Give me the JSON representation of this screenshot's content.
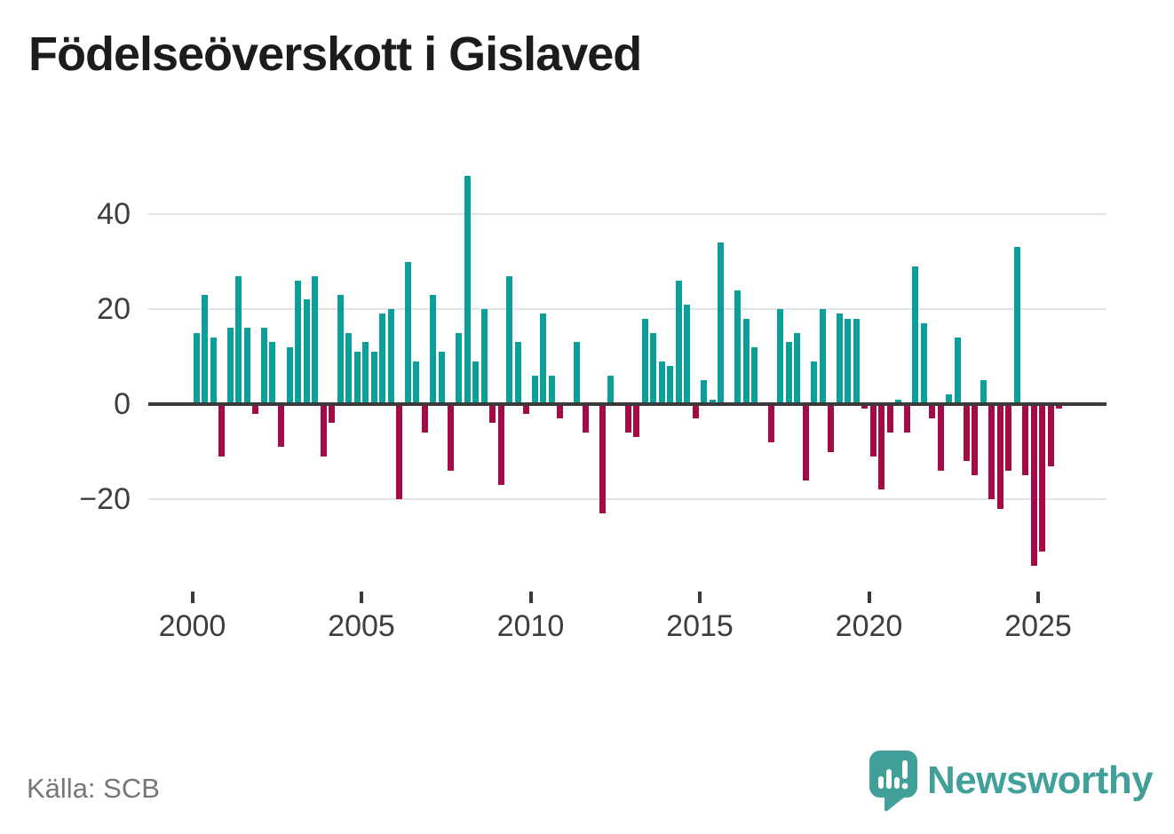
{
  "title": "Födelseöverskott i Gislaved",
  "source": "Källa: SCB",
  "brand": {
    "name": "Newsworthy"
  },
  "colors": {
    "positive": "#0aa099",
    "negative": "#a40a45",
    "axis_line": "#3a3a3a",
    "gridline": "#e3e3e3",
    "tick_text": "#3d3d3d",
    "title_text": "#1c1c1c",
    "source_text": "#767676",
    "brand_teal": "#41a099"
  },
  "chart_data": {
    "type": "bar",
    "title": "Födelseöverskott i Gislaved",
    "freq": "quarterly",
    "start_year": 2000,
    "start_quarter": 1,
    "values": [
      15,
      23,
      14,
      -11,
      16,
      27,
      16,
      -2,
      16,
      13,
      -9,
      12,
      26,
      22,
      27,
      -11,
      -4,
      23,
      15,
      11,
      13,
      11,
      19,
      20,
      -20,
      30,
      9,
      -6,
      23,
      11,
      -14,
      15,
      48,
      9,
      20,
      -4,
      -17,
      27,
      13,
      -2,
      6,
      19,
      6,
      -3,
      0,
      13,
      -6,
      0,
      -23,
      6,
      0,
      -6,
      -7,
      18,
      15,
      9,
      8,
      26,
      21,
      -3,
      5,
      1,
      34,
      0,
      24,
      18,
      12,
      0,
      -8,
      20,
      13,
      15,
      -16,
      9,
      20,
      -10,
      19,
      18,
      18,
      -1,
      -11,
      -18,
      -6,
      1,
      -6,
      29,
      17,
      -3,
      -14,
      2,
      14,
      -12,
      -15,
      5,
      -20,
      -22,
      -14,
      33,
      -15,
      -34,
      -31,
      -13,
      -1
    ],
    "yticks": [
      {
        "value": 40,
        "label": "40"
      },
      {
        "value": 20,
        "label": "20"
      },
      {
        "value": 0,
        "label": "0"
      },
      {
        "value": -20,
        "label": "−20"
      }
    ],
    "xticks": [
      2000,
      2005,
      2010,
      2015,
      2020,
      2025
    ],
    "ylim": [
      -36,
      50
    ],
    "grid": true,
    "legend": false
  }
}
